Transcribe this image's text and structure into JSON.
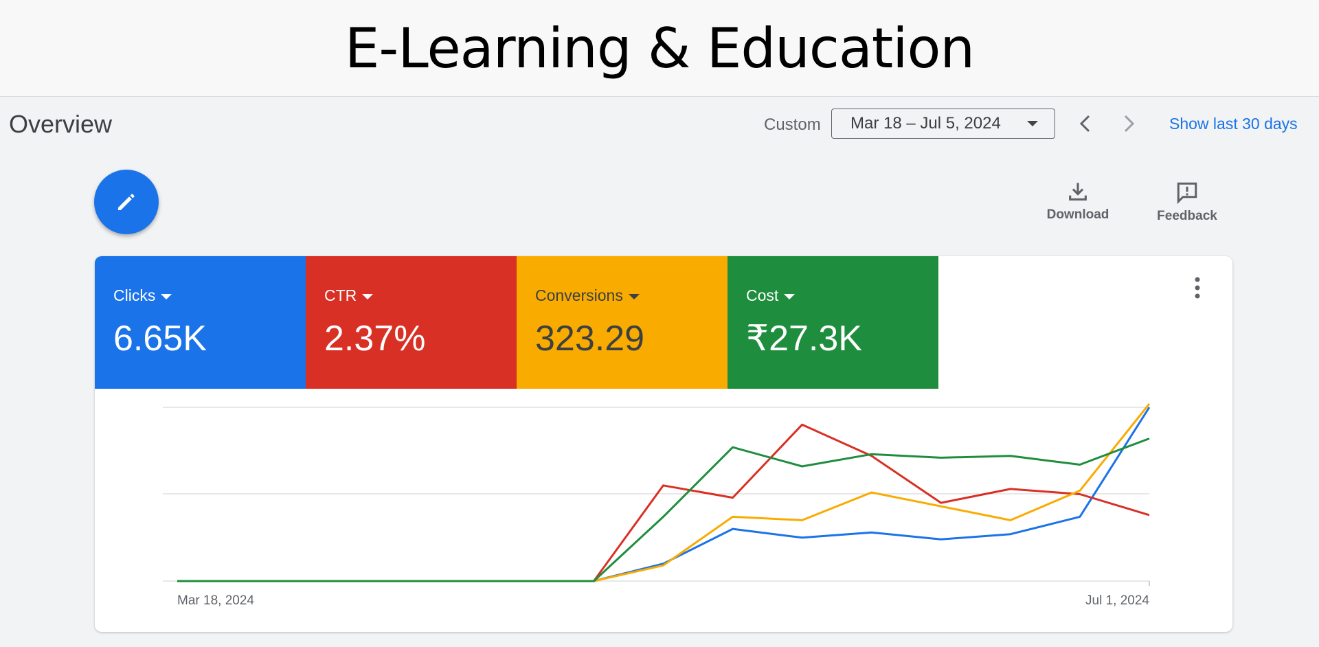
{
  "banner": {
    "title": "E-Learning & Education"
  },
  "header": {
    "title": "Overview",
    "custom_label": "Custom",
    "date_range": "Mar 18 – Jul 5, 2024",
    "show_last": "Show last 30 days"
  },
  "toolbar": {
    "download_label": "Download",
    "feedback_label": "Feedback"
  },
  "metrics": [
    {
      "name": "Clicks",
      "value": "6.65K",
      "color": "#1a73e8"
    },
    {
      "name": "CTR",
      "value": "2.37%",
      "color": "#d93025"
    },
    {
      "name": "Conversions",
      "value": "323.29",
      "color": "#f9ab00"
    },
    {
      "name": "Cost",
      "value": "₹27.3K",
      "color": "#1e8e3e"
    }
  ],
  "chart_data": {
    "type": "line",
    "x_tick_labels": [
      "Mar 18, 2024",
      "Jul 1, 2024"
    ],
    "grid": true,
    "ylim": [
      0,
      1
    ],
    "series": [
      {
        "name": "Clicks",
        "color": "#1a73e8",
        "values": [
          0,
          0,
          0,
          0,
          0,
          0,
          0,
          0.1,
          0.3,
          0.25,
          0.28,
          0.24,
          0.27,
          0.37,
          1.0
        ]
      },
      {
        "name": "CTR",
        "color": "#d93025",
        "values": [
          0,
          0,
          0,
          0,
          0,
          0,
          0,
          0.55,
          0.48,
          0.9,
          0.72,
          0.45,
          0.53,
          0.5,
          0.38
        ]
      },
      {
        "name": "Conversions",
        "color": "#f9ab00",
        "values": [
          0,
          0,
          0,
          0,
          0,
          0,
          0,
          0.09,
          0.37,
          0.35,
          0.51,
          0.43,
          0.35,
          0.52,
          1.02
        ]
      },
      {
        "name": "Cost",
        "color": "#1e8e3e",
        "values": [
          0,
          0,
          0,
          0,
          0,
          0,
          0,
          0.37,
          0.77,
          0.66,
          0.73,
          0.71,
          0.72,
          0.67,
          0.82
        ]
      }
    ]
  }
}
